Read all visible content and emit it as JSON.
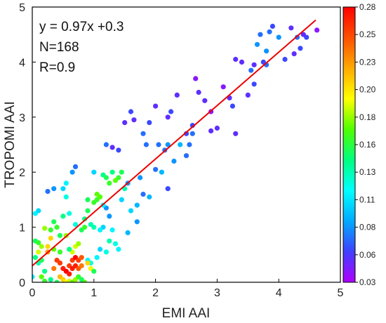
{
  "chart_data": {
    "type": "scatter",
    "title": "",
    "xlabel": "EMI AAI",
    "ylabel": "TROPOMI AAI",
    "xlim": [
      0,
      5
    ],
    "ylim": [
      0,
      5
    ],
    "xticks": [
      "0",
      "1",
      "2",
      "3",
      "4",
      "5"
    ],
    "yticks": [
      "0",
      "1",
      "2",
      "3",
      "4",
      "5"
    ],
    "annotations": [
      "y = 0.97x +0.3",
      "N=168",
      "R=0.9"
    ],
    "fit_line": {
      "slope": 0.97,
      "intercept": 0.3,
      "x_range": [
        0,
        4.6
      ],
      "color": "#ee0000"
    },
    "colorbar": {
      "min": 0.03,
      "max": 0.28,
      "tick_labels": [
        "0.28",
        "0.25",
        "0.23",
        "0.20",
        "0.18",
        "0.16",
        "0.13",
        "0.11",
        "0.08",
        "0.06",
        "0.03"
      ],
      "colormap": [
        "#b000ff",
        "#4040ff",
        "#00aaff",
        "#00ffff",
        "#00ff80",
        "#50ff00",
        "#ffff00",
        "#ffaa00",
        "#ff5000",
        "#ff0000"
      ]
    },
    "points": [
      [
        4.62,
        4.58,
        0.04
      ],
      [
        4.45,
        4.45,
        0.06
      ],
      [
        4.4,
        4.5,
        0.05
      ],
      [
        4.35,
        4.25,
        0.06
      ],
      [
        4.3,
        4.45,
        0.07
      ],
      [
        4.2,
        4.62,
        0.05
      ],
      [
        4.25,
        4.15,
        0.05
      ],
      [
        4.1,
        4.05,
        0.06
      ],
      [
        4.0,
        4.45,
        0.08
      ],
      [
        3.9,
        4.65,
        0.06
      ],
      [
        3.85,
        4.55,
        0.07
      ],
      [
        3.8,
        4.2,
        0.08
      ],
      [
        3.75,
        4.0,
        0.06
      ],
      [
        3.7,
        4.5,
        0.07
      ],
      [
        3.65,
        4.32,
        0.08
      ],
      [
        3.6,
        3.95,
        0.05
      ],
      [
        3.55,
        3.85,
        0.07
      ],
      [
        3.5,
        3.4,
        0.05
      ],
      [
        3.4,
        4.0,
        0.05
      ],
      [
        3.3,
        4.05,
        0.05
      ],
      [
        3.25,
        3.2,
        0.06
      ],
      [
        3.2,
        3.35,
        0.05
      ],
      [
        3.1,
        3.55,
        0.04
      ],
      [
        3.0,
        2.8,
        0.05
      ],
      [
        2.9,
        3.1,
        0.04
      ],
      [
        2.8,
        3.3,
        0.05
      ],
      [
        2.7,
        3.45,
        0.05
      ],
      [
        2.65,
        3.7,
        0.04
      ],
      [
        2.6,
        2.85,
        0.06
      ],
      [
        2.6,
        2.7,
        0.07
      ],
      [
        2.55,
        2.5,
        0.07
      ],
      [
        2.5,
        2.7,
        0.06
      ],
      [
        2.4,
        2.5,
        0.09
      ],
      [
        2.35,
        3.4,
        0.05
      ],
      [
        2.25,
        3.1,
        0.06
      ],
      [
        2.2,
        3.0,
        0.05
      ],
      [
        2.2,
        2.5,
        0.08
      ],
      [
        2.15,
        2.4,
        0.07
      ],
      [
        2.1,
        2.0,
        0.09
      ],
      [
        2.05,
        2.5,
        0.07
      ],
      [
        2.0,
        3.2,
        0.05
      ],
      [
        1.9,
        2.9,
        0.06
      ],
      [
        1.85,
        2.5,
        0.07
      ],
      [
        1.8,
        2.7,
        0.07
      ],
      [
        1.75,
        1.9,
        0.08
      ],
      [
        1.7,
        1.4,
        0.09
      ],
      [
        1.65,
        2.95,
        0.05
      ],
      [
        1.6,
        3.1,
        0.06
      ],
      [
        1.55,
        1.8,
        0.08
      ],
      [
        1.5,
        2.9,
        0.05
      ],
      [
        1.45,
        1.5,
        0.1
      ],
      [
        1.4,
        2.4,
        0.06
      ],
      [
        1.3,
        2.45,
        0.05
      ],
      [
        1.2,
        2.5,
        0.07
      ],
      [
        1.25,
        1.2,
        0.08
      ],
      [
        1.2,
        1.35,
        0.08
      ],
      [
        1.15,
        1.0,
        0.1
      ],
      [
        1.1,
        0.95,
        0.11
      ],
      [
        1.0,
        2.0,
        0.1
      ],
      [
        1.0,
        1.0,
        0.13
      ],
      [
        0.9,
        1.5,
        0.15
      ],
      [
        0.7,
        2.1,
        0.07
      ],
      [
        0.65,
        2.0,
        0.08
      ],
      [
        0.55,
        1.8,
        0.11
      ],
      [
        0.5,
        1.7,
        0.1
      ],
      [
        0.35,
        1.7,
        0.08
      ],
      [
        0.25,
        1.65,
        0.07
      ],
      [
        0.1,
        1.3,
        0.1
      ],
      [
        0.05,
        1.25,
        0.11
      ],
      [
        0.0,
        0.1,
        0.11
      ],
      [
        0.05,
        0.75,
        0.15
      ],
      [
        0.1,
        0.72,
        0.16
      ],
      [
        0.15,
        0.65,
        0.18
      ],
      [
        0.2,
        0.98,
        0.18
      ],
      [
        0.25,
        0.65,
        0.21
      ],
      [
        0.3,
        0.8,
        0.21
      ],
      [
        0.3,
        0.95,
        0.16
      ],
      [
        0.35,
        1.1,
        0.15
      ],
      [
        0.4,
        1.0,
        0.16
      ],
      [
        0.45,
        0.85,
        0.15
      ],
      [
        0.5,
        1.2,
        0.14
      ],
      [
        0.55,
        0.85,
        0.18
      ],
      [
        0.55,
        1.55,
        0.12
      ],
      [
        0.6,
        1.25,
        0.12
      ],
      [
        0.65,
        0.55,
        0.19
      ],
      [
        0.7,
        0.65,
        0.19
      ],
      [
        0.75,
        0.7,
        0.18
      ],
      [
        0.8,
        0.95,
        0.15
      ],
      [
        0.85,
        1.0,
        0.16
      ],
      [
        0.85,
        1.15,
        0.14
      ],
      [
        0.9,
        1.3,
        0.15
      ],
      [
        0.95,
        1.05,
        0.13
      ],
      [
        1.0,
        1.45,
        0.16
      ],
      [
        1.05,
        1.5,
        0.16
      ],
      [
        1.05,
        1.6,
        0.17
      ],
      [
        1.1,
        1.55,
        0.17
      ],
      [
        1.15,
        1.95,
        0.14
      ],
      [
        1.2,
        1.9,
        0.15
      ],
      [
        1.25,
        1.8,
        0.16
      ],
      [
        1.3,
        2.0,
        0.14
      ],
      [
        1.35,
        1.85,
        0.17
      ],
      [
        1.4,
        1.9,
        0.16
      ],
      [
        1.45,
        2.0,
        0.15
      ],
      [
        1.5,
        1.7,
        0.13
      ],
      [
        1.4,
        0.6,
        0.11
      ],
      [
        1.35,
        0.7,
        0.12
      ],
      [
        1.3,
        0.95,
        0.11
      ],
      [
        1.25,
        0.75,
        0.13
      ],
      [
        1.2,
        0.55,
        0.12
      ],
      [
        1.1,
        0.6,
        0.1
      ],
      [
        1.05,
        0.45,
        0.11
      ],
      [
        0.95,
        0.35,
        0.12
      ],
      [
        0.9,
        0.4,
        0.11
      ],
      [
        0.05,
        0.45,
        0.14
      ],
      [
        0.1,
        0.35,
        0.13
      ],
      [
        0.15,
        0.4,
        0.15
      ],
      [
        0.2,
        0.2,
        0.14
      ],
      [
        0.25,
        0.55,
        0.23
      ],
      [
        0.35,
        0.25,
        0.24
      ],
      [
        0.4,
        0.4,
        0.26
      ],
      [
        0.45,
        0.35,
        0.26
      ],
      [
        0.5,
        0.25,
        0.27
      ],
      [
        0.55,
        0.2,
        0.28
      ],
      [
        0.6,
        0.15,
        0.27
      ],
      [
        0.6,
        0.3,
        0.26
      ],
      [
        0.65,
        0.25,
        0.27
      ],
      [
        0.65,
        0.4,
        0.26
      ],
      [
        0.7,
        0.45,
        0.28
      ],
      [
        0.7,
        0.3,
        0.27
      ],
      [
        0.75,
        0.4,
        0.26
      ],
      [
        0.75,
        0.25,
        0.25
      ],
      [
        0.8,
        0.3,
        0.24
      ],
      [
        0.8,
        0.45,
        0.25
      ],
      [
        0.45,
        0.1,
        0.22
      ],
      [
        0.5,
        0.05,
        0.21
      ],
      [
        0.55,
        0.0,
        0.2
      ],
      [
        0.6,
        0.02,
        0.19
      ],
      [
        0.65,
        0.0,
        0.17
      ],
      [
        0.7,
        0.05,
        0.18
      ],
      [
        0.85,
        0.0,
        0.17
      ],
      [
        0.9,
        0.35,
        0.21
      ],
      [
        0.95,
        0.25,
        0.2
      ],
      [
        0.75,
        0.1,
        0.16
      ],
      [
        0.8,
        0.05,
        0.15
      ],
      [
        0.4,
        0.0,
        0.15
      ],
      [
        0.3,
        0.05,
        0.14
      ],
      [
        0.2,
        0.02,
        0.16
      ],
      [
        0.15,
        0.1,
        0.17
      ],
      [
        1.0,
        0.2,
        0.15
      ],
      [
        0.1,
        0.55,
        0.19
      ],
      [
        0.35,
        0.6,
        0.17
      ],
      [
        0.45,
        0.55,
        0.16
      ],
      [
        0.6,
        0.6,
        0.14
      ],
      [
        0.7,
        1.05,
        0.12
      ],
      [
        1.6,
        1.3,
        0.1
      ],
      [
        1.7,
        1.1,
        0.08
      ],
      [
        1.8,
        1.6,
        0.07
      ],
      [
        1.9,
        1.55,
        0.09
      ],
      [
        2.2,
        1.7,
        0.06
      ],
      [
        2.3,
        2.2,
        0.08
      ],
      [
        2.5,
        2.3,
        0.07
      ],
      [
        3.3,
        2.7,
        0.05
      ],
      [
        3.6,
        3.6,
        0.06
      ],
      [
        3.8,
        3.95,
        0.07
      ],
      [
        2.9,
        2.75,
        0.05
      ],
      [
        2.0,
        2.05,
        0.07
      ],
      [
        1.55,
        0.9,
        0.09
      ],
      [
        1.15,
        1.4,
        0.11
      ]
    ]
  }
}
